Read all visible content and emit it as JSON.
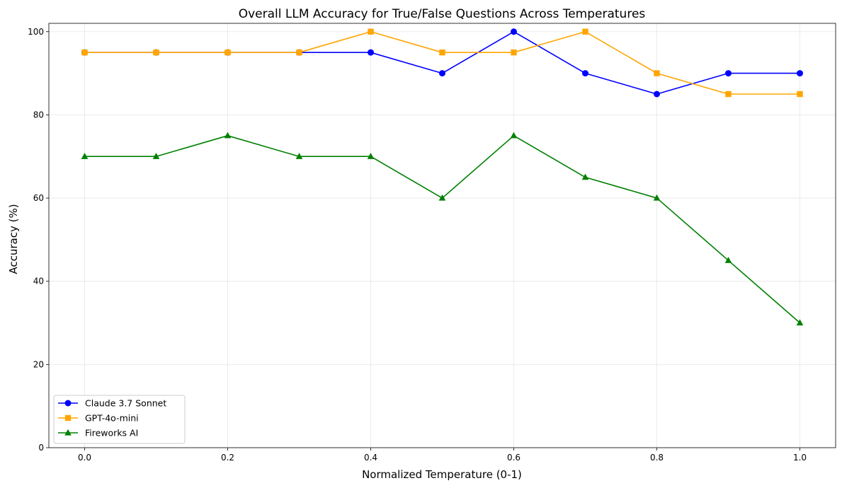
{
  "chart_data": {
    "type": "line",
    "title": "Overall LLM Accuracy for True/False Questions Across Temperatures",
    "xlabel": "Normalized Temperature (0-1)",
    "ylabel": "Accuracy (%)",
    "xlim": [
      -0.05,
      1.05
    ],
    "ylim": [
      0,
      102
    ],
    "x": [
      0.0,
      0.1,
      0.2,
      0.3,
      0.4,
      0.5,
      0.6,
      0.7,
      0.8,
      0.9,
      1.0
    ],
    "xticks": [
      "0.0",
      "0.2",
      "0.4",
      "0.6",
      "0.8",
      "1.0"
    ],
    "yticks": [
      "0",
      "20",
      "40",
      "60",
      "80",
      "100"
    ],
    "grid": true,
    "legend_position": "lower-left",
    "series": [
      {
        "name": "Claude 3.7 Sonnet",
        "color": "#0000ff",
        "marker": "circle",
        "values": [
          95,
          95,
          95,
          95,
          95,
          90,
          100,
          90,
          85,
          90,
          90
        ]
      },
      {
        "name": "GPT-4o-mini",
        "color": "#ffa500",
        "marker": "square",
        "values": [
          95,
          95,
          95,
          95,
          100,
          95,
          95,
          100,
          90,
          85,
          85
        ]
      },
      {
        "name": "Fireworks AI",
        "color": "#008000",
        "marker": "triangle",
        "values": [
          70,
          70,
          75,
          70,
          70,
          60,
          75,
          65,
          60,
          45,
          30
        ]
      }
    ]
  }
}
